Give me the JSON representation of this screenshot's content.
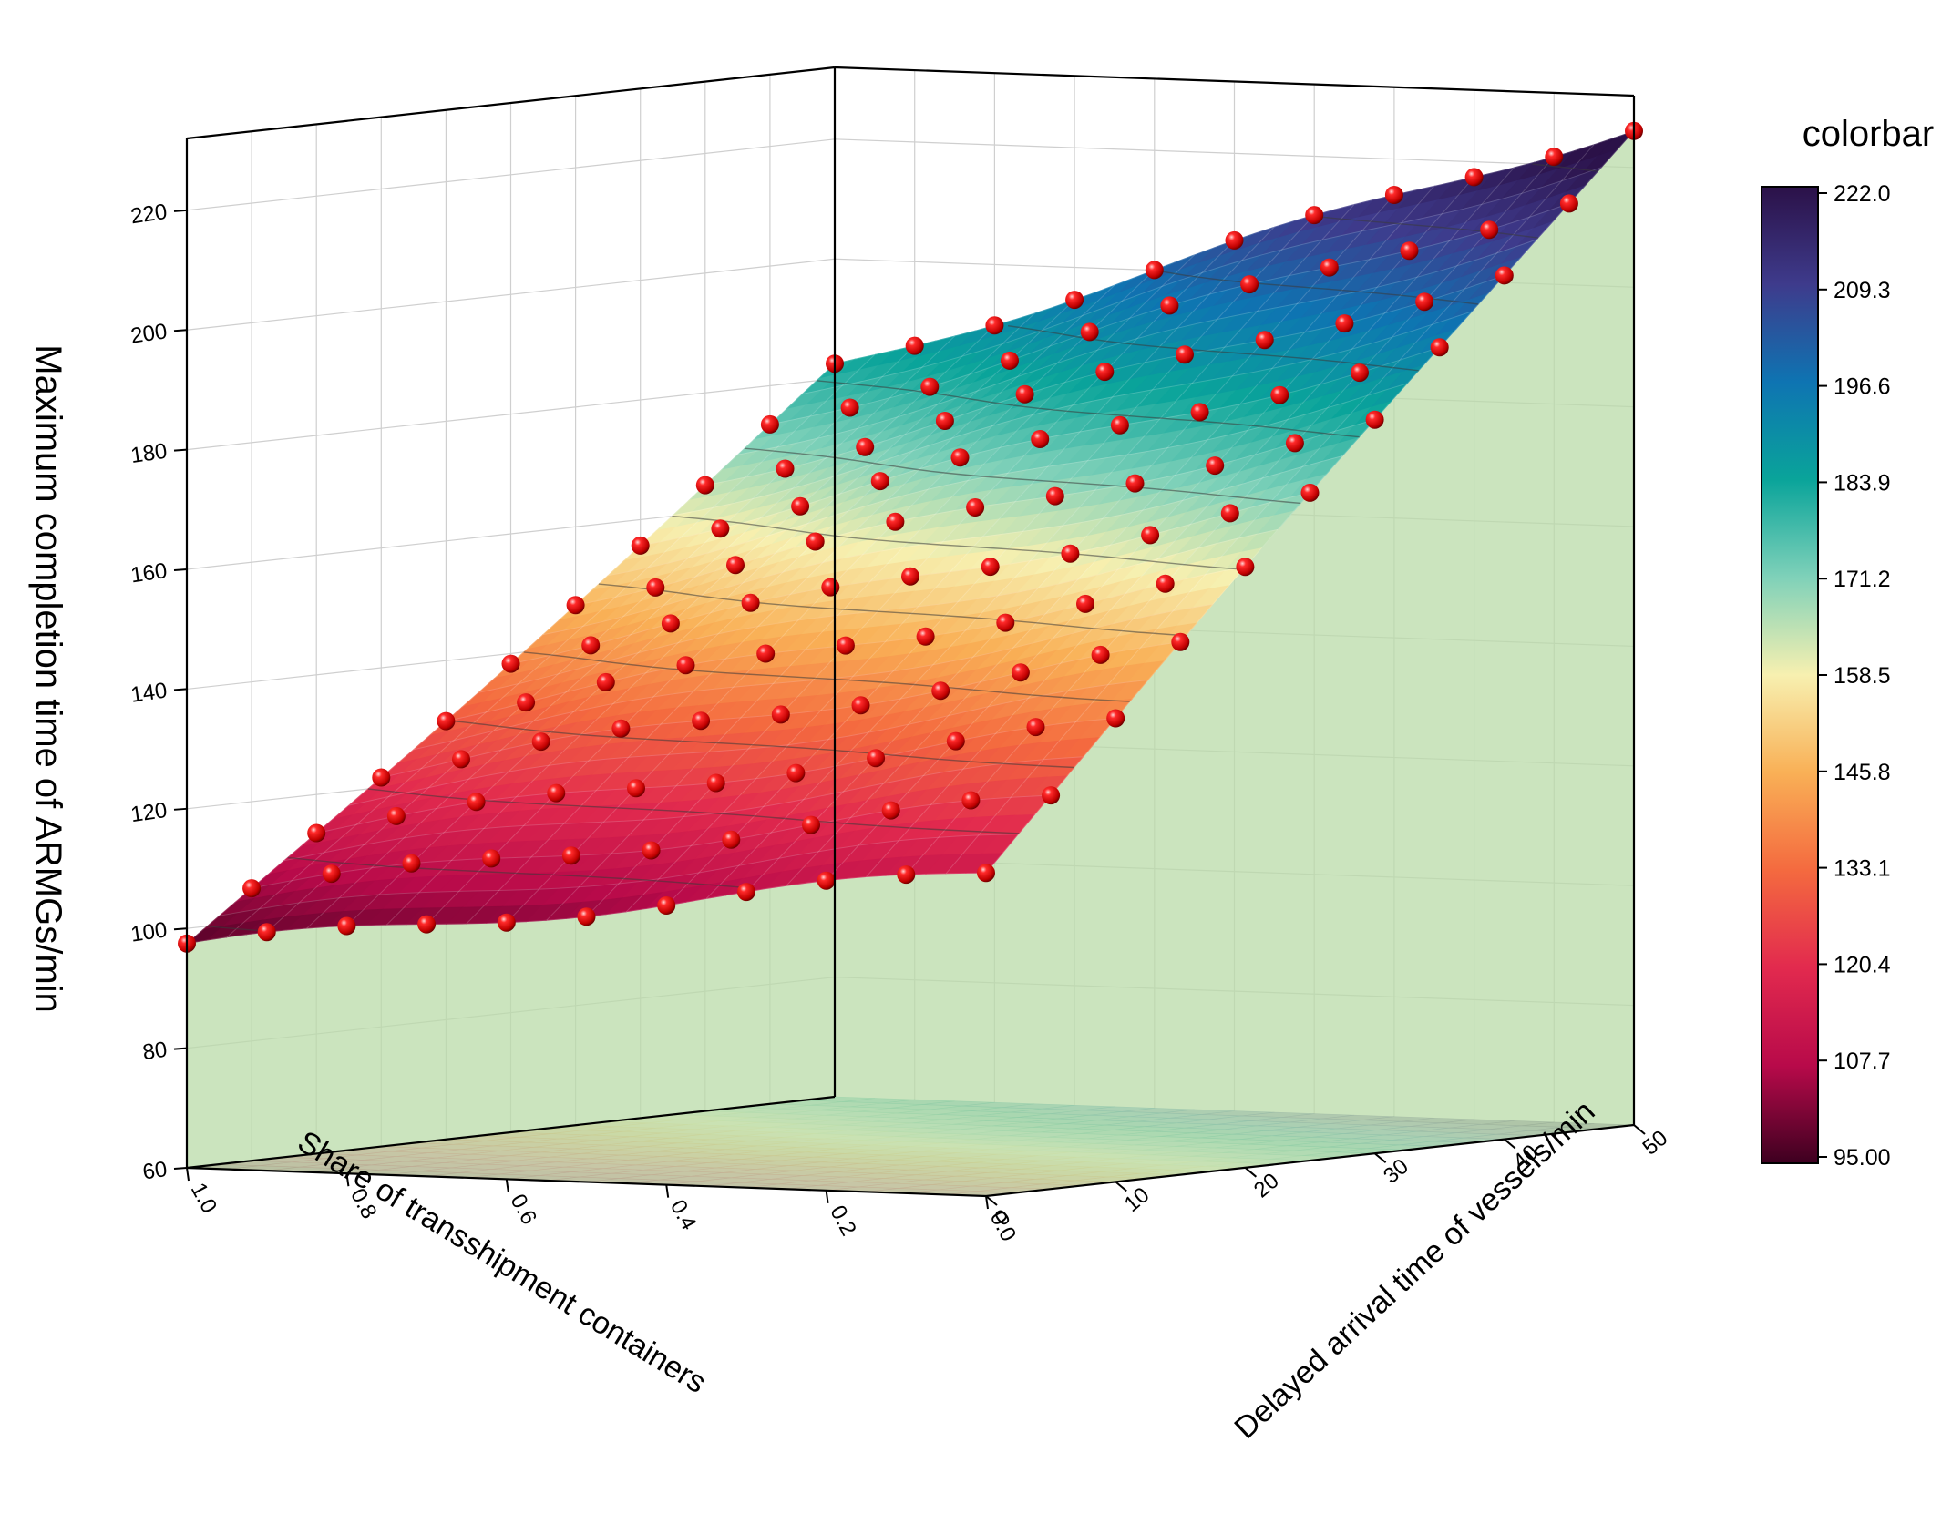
{
  "chart_data": {
    "type": "surface3d",
    "zlabel": "Maximum completion time of ARMGs/min",
    "xlabel": "Share of transshipment containers",
    "ylabel": "Delayed arrival time of vessels/min",
    "x_ticks": [
      "0.0",
      "0.2",
      "0.4",
      "0.6",
      "0.8",
      "1.0"
    ],
    "y_ticks": [
      "0",
      "10",
      "20",
      "30",
      "40",
      "50"
    ],
    "z_ticks": [
      "60",
      "80",
      "100",
      "120",
      "140",
      "160",
      "180",
      "200",
      "220"
    ],
    "xlim": [
      0,
      1
    ],
    "ylim": [
      0,
      50
    ],
    "zlim": [
      60,
      232
    ],
    "x": [
      0.0,
      0.1,
      0.2,
      0.3,
      0.4,
      0.5,
      0.6,
      0.7,
      0.8,
      0.9,
      1.0
    ],
    "y": [
      0,
      5,
      10,
      15,
      20,
      25,
      30,
      35,
      40,
      45,
      50
    ],
    "surface_corners": {
      "x0_y0": 114,
      "x1_y0": 97,
      "x0_y50": 227,
      "x1_y50": 182
    },
    "colorbar": {
      "title": "colorbar",
      "ticks": [
        "222.0",
        "209.3",
        "196.6",
        "183.9",
        "171.2",
        "158.5",
        "145.8",
        "133.1",
        "120.4",
        "107.7",
        "95.00"
      ],
      "min": 95,
      "max": 222,
      "colormap": [
        "#2b1148",
        "#3e3b8c",
        "#0e74b2",
        "#0aa49a",
        "#7fd1b9",
        "#f7f0b0",
        "#f9b056",
        "#f46a3f",
        "#e22a4e",
        "#b80a4a",
        "#3d0020"
      ]
    },
    "marker_color": "#e8000b",
    "floor_color": "#b9dba8"
  }
}
